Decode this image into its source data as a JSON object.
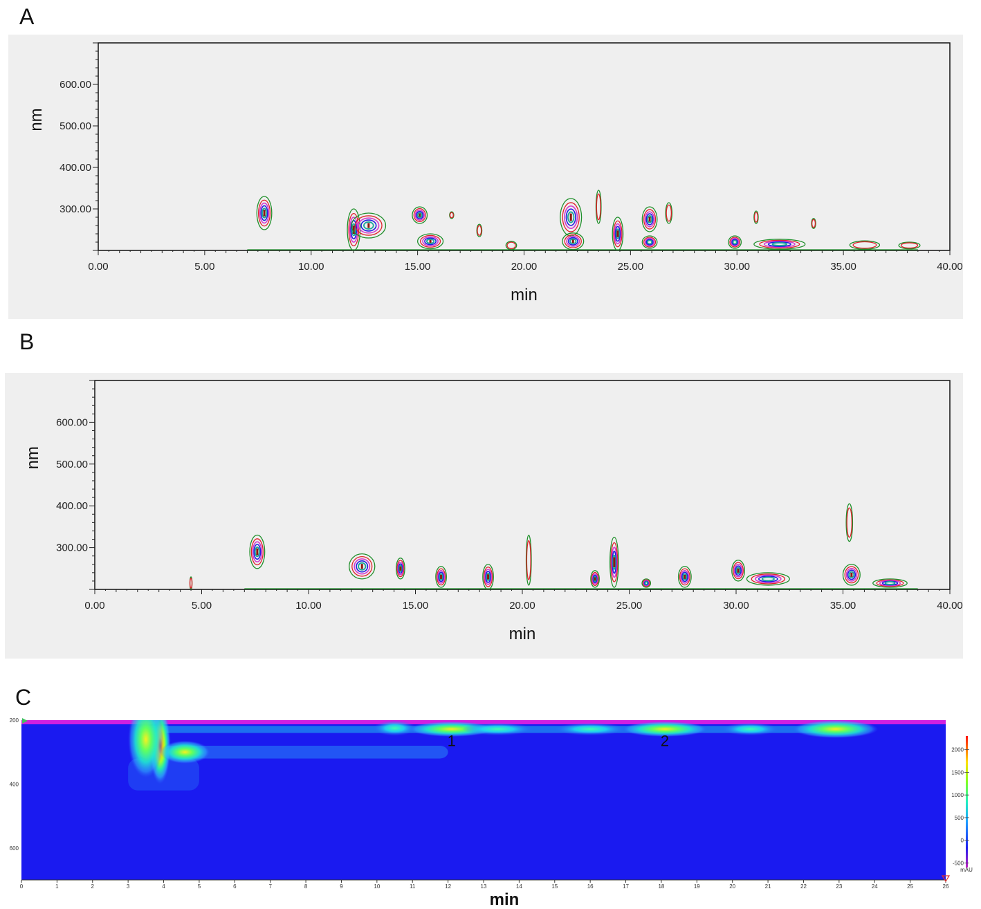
{
  "panels": {
    "a_label": "A",
    "b_label": "B",
    "c_label": "C"
  },
  "colors": {
    "panel_bg": "#efefef",
    "contour_green": "#1f8f2a",
    "contour_red": "#e0202a",
    "contour_magenta": "#d43ad0",
    "contour_blue": "#2020e0",
    "contour_teal": "#1aa79a",
    "contour_dark_red": "#8a1a10",
    "heatmap_bg": "#1a1af0"
  },
  "chart_data": [
    {
      "panel": "A",
      "type": "heatmap",
      "subtype": "contour",
      "xlabel": "min",
      "ylabel": "nm",
      "xlim": [
        0,
        40
      ],
      "ylim": [
        200,
        700
      ],
      "xticks": [
        "0.00",
        "5.00",
        "10.00",
        "15.00",
        "20.00",
        "25.00",
        "30.00",
        "35.00",
        "40.00"
      ],
      "yticks": [
        "300.00",
        "400.00",
        "500.00",
        "600.00"
      ],
      "grid": false,
      "peaks": [
        {
          "t": 7.8,
          "nm": 290,
          "dt": 0.35,
          "dn": 40
        },
        {
          "t": 12.0,
          "nm": 250,
          "dt": 0.3,
          "dn": 50
        },
        {
          "t": 12.7,
          "nm": 260,
          "dt": 0.8,
          "dn": 30
        },
        {
          "t": 15.1,
          "nm": 285,
          "dt": 0.35,
          "dn": 20
        },
        {
          "t": 15.6,
          "nm": 222,
          "dt": 0.6,
          "dn": 18
        },
        {
          "t": 16.6,
          "nm": 285,
          "dt": 0.1,
          "dn": 8
        },
        {
          "t": 17.9,
          "nm": 248,
          "dt": 0.12,
          "dn": 15
        },
        {
          "t": 19.4,
          "nm": 212,
          "dt": 0.25,
          "dn": 10
        },
        {
          "t": 22.2,
          "nm": 280,
          "dt": 0.5,
          "dn": 45
        },
        {
          "t": 22.3,
          "nm": 222,
          "dt": 0.5,
          "dn": 20
        },
        {
          "t": 23.5,
          "nm": 305,
          "dt": 0.12,
          "dn": 40
        },
        {
          "t": 24.4,
          "nm": 240,
          "dt": 0.25,
          "dn": 40
        },
        {
          "t": 25.9,
          "nm": 275,
          "dt": 0.35,
          "dn": 30
        },
        {
          "t": 25.9,
          "nm": 220,
          "dt": 0.35,
          "dn": 15
        },
        {
          "t": 26.8,
          "nm": 290,
          "dt": 0.15,
          "dn": 25
        },
        {
          "t": 29.9,
          "nm": 220,
          "dt": 0.3,
          "dn": 15
        },
        {
          "t": 30.9,
          "nm": 280,
          "dt": 0.1,
          "dn": 15
        },
        {
          "t": 32.0,
          "nm": 215,
          "dt": 1.2,
          "dn": 12
        },
        {
          "t": 33.6,
          "nm": 265,
          "dt": 0.1,
          "dn": 12
        },
        {
          "t": 36.0,
          "nm": 213,
          "dt": 0.7,
          "dn": 10
        },
        {
          "t": 38.1,
          "nm": 212,
          "dt": 0.5,
          "dn": 8
        }
      ]
    },
    {
      "panel": "B",
      "type": "heatmap",
      "subtype": "contour",
      "xlabel": "min",
      "ylabel": "nm",
      "xlim": [
        0,
        40
      ],
      "ylim": [
        200,
        700
      ],
      "xticks": [
        "0.00",
        "5.00",
        "10.00",
        "15.00",
        "20.00",
        "25.00",
        "30.00",
        "35.00",
        "40.00"
      ],
      "yticks": [
        "300.00",
        "400.00",
        "500.00",
        "600.00"
      ],
      "grid": false,
      "peaks": [
        {
          "t": 4.5,
          "nm": 215,
          "dt": 0.05,
          "dn": 15
        },
        {
          "t": 7.6,
          "nm": 290,
          "dt": 0.35,
          "dn": 40
        },
        {
          "t": 12.5,
          "nm": 255,
          "dt": 0.6,
          "dn": 30
        },
        {
          "t": 14.3,
          "nm": 250,
          "dt": 0.2,
          "dn": 25
        },
        {
          "t": 16.2,
          "nm": 230,
          "dt": 0.25,
          "dn": 25
        },
        {
          "t": 18.4,
          "nm": 230,
          "dt": 0.25,
          "dn": 30
        },
        {
          "t": 20.3,
          "nm": 270,
          "dt": 0.12,
          "dn": 60
        },
        {
          "t": 23.4,
          "nm": 225,
          "dt": 0.2,
          "dn": 20
        },
        {
          "t": 24.3,
          "nm": 265,
          "dt": 0.2,
          "dn": 60
        },
        {
          "t": 25.8,
          "nm": 215,
          "dt": 0.2,
          "dn": 10
        },
        {
          "t": 27.6,
          "nm": 230,
          "dt": 0.3,
          "dn": 25
        },
        {
          "t": 30.1,
          "nm": 245,
          "dt": 0.3,
          "dn": 25
        },
        {
          "t": 31.5,
          "nm": 225,
          "dt": 1.0,
          "dn": 15
        },
        {
          "t": 35.3,
          "nm": 360,
          "dt": 0.15,
          "dn": 45
        },
        {
          "t": 35.4,
          "nm": 235,
          "dt": 0.4,
          "dn": 25
        },
        {
          "t": 37.2,
          "nm": 215,
          "dt": 0.8,
          "dn": 10
        }
      ]
    },
    {
      "panel": "C",
      "type": "heatmap",
      "xlabel": "min",
      "xlim": [
        0,
        26
      ],
      "ylim": [
        200,
        700
      ],
      "xticks": [
        "0",
        "1",
        "2",
        "3",
        "4",
        "5",
        "6",
        "7",
        "8",
        "9",
        "10",
        "11",
        "12",
        "13",
        "14",
        "15",
        "16",
        "17",
        "18",
        "19",
        "20",
        "21",
        "22",
        "23",
        "24",
        "25",
        "26"
      ],
      "yticks": [
        "200",
        "400",
        "600"
      ],
      "colorbar": {
        "label": "mAU",
        "ticks": [
          "2000",
          "1500",
          "1000",
          "500",
          "0",
          "-500"
        ]
      },
      "annotations": [
        {
          "text": "1",
          "x": 12.1,
          "nm": 260
        },
        {
          "text": "2",
          "x": 18.1,
          "nm": 260
        }
      ],
      "peaks": [
        {
          "t": 3.9,
          "nm": 280,
          "dt": 0.15,
          "dn": 60,
          "i": 2100
        },
        {
          "t": 3.5,
          "nm": 260,
          "dt": 0.25,
          "dn": 60,
          "i": 1500
        },
        {
          "t": 4.6,
          "nm": 300,
          "dt": 0.35,
          "dn": 18,
          "i": 1350
        },
        {
          "t": 10.5,
          "nm": 225,
          "dt": 0.3,
          "dn": 12,
          "i": 950
        },
        {
          "t": 12.1,
          "nm": 228,
          "dt": 0.6,
          "dn": 12,
          "i": 1500
        },
        {
          "t": 13.4,
          "nm": 228,
          "dt": 0.5,
          "dn": 10,
          "i": 900
        },
        {
          "t": 16.0,
          "nm": 228,
          "dt": 0.5,
          "dn": 10,
          "i": 800
        },
        {
          "t": 18.1,
          "nm": 228,
          "dt": 0.6,
          "dn": 12,
          "i": 1600
        },
        {
          "t": 20.5,
          "nm": 228,
          "dt": 0.4,
          "dn": 10,
          "i": 750
        },
        {
          "t": 22.9,
          "nm": 228,
          "dt": 0.6,
          "dn": 14,
          "i": 1400
        }
      ]
    }
  ]
}
